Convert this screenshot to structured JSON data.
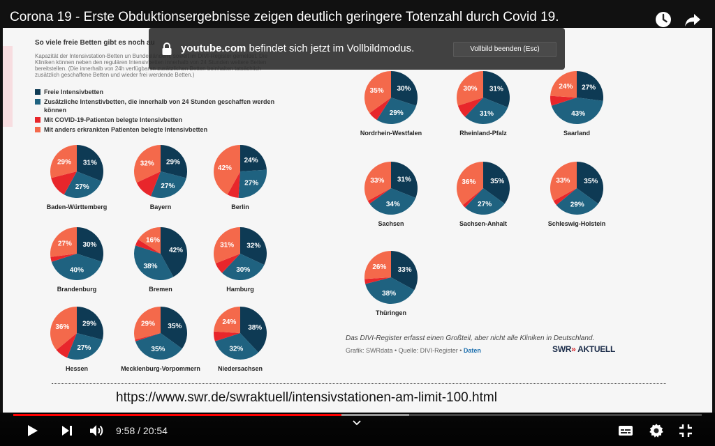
{
  "video": {
    "title": "Corona 19 - Erste Obduktionsergebnisse zeigen deutlich geringere Totenzahl durch Covid 19.",
    "url_overlay": "https://www.swr.de/swraktuell/intensivstationen-am-limit-100.html"
  },
  "fullscreen_toast": {
    "domain": "youtube.com",
    "message": "befindet sich jetzt im Vollbildmodus.",
    "exit_button": "Vollbild beenden (Esc)"
  },
  "player": {
    "current_time": "9:58",
    "separator": "/",
    "duration": "20:54",
    "played_fraction": 0.477,
    "buffered_fraction": 0.575
  },
  "graphic": {
    "heading": "So viele freie Betten gibt es noch au",
    "intro": "Kapazität der Intensivstation-Betten un Bundesländern, soweit im DIVI-Register gemeldet. Die Kliniken können neben den regulären Intensivbetten innerhalb von 24 Stunden weitere Betten bereitstellen. (Die innerhalb von 24h verfügbaren zusätzlichen Betten beinhalten tatsächlich zusätzlich geschaffene Betten und wieder frei werdende Betten.)",
    "legend": [
      {
        "label": "Freie Intensivbetten",
        "color": "#0e3a54"
      },
      {
        "label": "Zusätzliche Intenstivbetten, die innerhalb von 24 Stunden geschaffen werden können",
        "color": "#1f6280"
      },
      {
        "label": "Mit COVID-19-Patienten belegte Intensivbetten",
        "color": "#e8262b"
      },
      {
        "label": "Mit anders erkrankten Patienten belegte Intensivbetten",
        "color": "#f4694b"
      }
    ],
    "footnote": "Das DIVI-Register erfasst einen Großteil, aber nicht alle Kliniken in Deutschland.",
    "credit_prefix": "Grafik: SWRdata • Quelle: DIVI-Register •",
    "credit_link": "Daten",
    "brand_swr": "SWR",
    "brand_arrows": "»",
    "brand_aktuell": "AKTUELL"
  },
  "colors": {
    "free": "#0e3a54",
    "additional": "#1f6280",
    "covid": "#e8262b",
    "other": "#f4694b",
    "progress": "#ff0000"
  },
  "chart_data": {
    "type": "pie",
    "series_order": [
      "Freie Intensivbetten",
      "Zusätzliche Intenstivbetten",
      "Mit COVID-19-Patienten belegte Intensivbetten",
      "Mit anders erkrankten Patienten belegte Intensivbetten"
    ],
    "pies": [
      {
        "name": "Baden-Württemberg",
        "free": 31,
        "additional": 27,
        "covid": 13,
        "other": 29,
        "labels": [
          "31%",
          "27%",
          "",
          "29%"
        ]
      },
      {
        "name": "Bayern",
        "free": 29,
        "additional": 27,
        "covid": 12,
        "other": 32,
        "labels": [
          "29%",
          "27%",
          "",
          "32%"
        ]
      },
      {
        "name": "Berlin",
        "free": 24,
        "additional": 27,
        "covid": 7,
        "other": 42,
        "labels": [
          "24%",
          "27%",
          "",
          "42%"
        ]
      },
      {
        "name": "Brandenburg",
        "free": 30,
        "additional": 40,
        "covid": 3,
        "other": 27,
        "labels": [
          "30%",
          "40%",
          "",
          "27%"
        ]
      },
      {
        "name": "Bremen",
        "free": 42,
        "additional": 38,
        "covid": 4,
        "other": 16,
        "labels": [
          "42%",
          "38%",
          "",
          "16%"
        ]
      },
      {
        "name": "Hamburg",
        "free": 32,
        "additional": 30,
        "covid": 7,
        "other": 31,
        "labels": [
          "32%",
          "30%",
          "",
          "31%"
        ]
      },
      {
        "name": "Hessen",
        "free": 29,
        "additional": 27,
        "covid": 8,
        "other": 36,
        "labels": [
          "29%",
          "27%",
          "",
          "36%"
        ]
      },
      {
        "name": "Mecklenburg-Vorpommern",
        "free": 35,
        "additional": 35,
        "covid": 1,
        "other": 29,
        "labels": [
          "35%",
          "35%",
          "",
          "29%"
        ]
      },
      {
        "name": "Niedersachsen",
        "free": 38,
        "additional": 32,
        "covid": 6,
        "other": 24,
        "labels": [
          "38%",
          "32%",
          "",
          "24%"
        ]
      },
      {
        "name": "Nordrhein-Westfalen",
        "free": 30,
        "additional": 29,
        "covid": 6,
        "other": 35,
        "labels": [
          "30%",
          "29%",
          "",
          "35%"
        ]
      },
      {
        "name": "Rheinland-Pfalz",
        "free": 31,
        "additional": 31,
        "covid": 8,
        "other": 30,
        "labels": [
          "31%",
          "31%",
          "",
          "30%"
        ]
      },
      {
        "name": "Saarland",
        "free": 27,
        "additional": 43,
        "covid": 6,
        "other": 24,
        "labels": [
          "27%",
          "43%",
          "",
          "24%"
        ]
      },
      {
        "name": "Sachsen",
        "free": 31,
        "additional": 34,
        "covid": 2,
        "other": 33,
        "labels": [
          "31%",
          "34%",
          "",
          "33%"
        ]
      },
      {
        "name": "Sachsen-Anhalt",
        "free": 35,
        "additional": 27,
        "covid": 2,
        "other": 36,
        "labels": [
          "35%",
          "27%",
          "",
          "36%"
        ]
      },
      {
        "name": "Schleswig-Holstein",
        "free": 35,
        "additional": 29,
        "covid": 3,
        "other": 33,
        "labels": [
          "35%",
          "29%",
          "",
          "33%"
        ]
      },
      {
        "name": "Thüringen",
        "free": 33,
        "additional": 38,
        "covid": 3,
        "other": 26,
        "labels": [
          "33%",
          "38%",
          "",
          "26%"
        ]
      }
    ]
  }
}
